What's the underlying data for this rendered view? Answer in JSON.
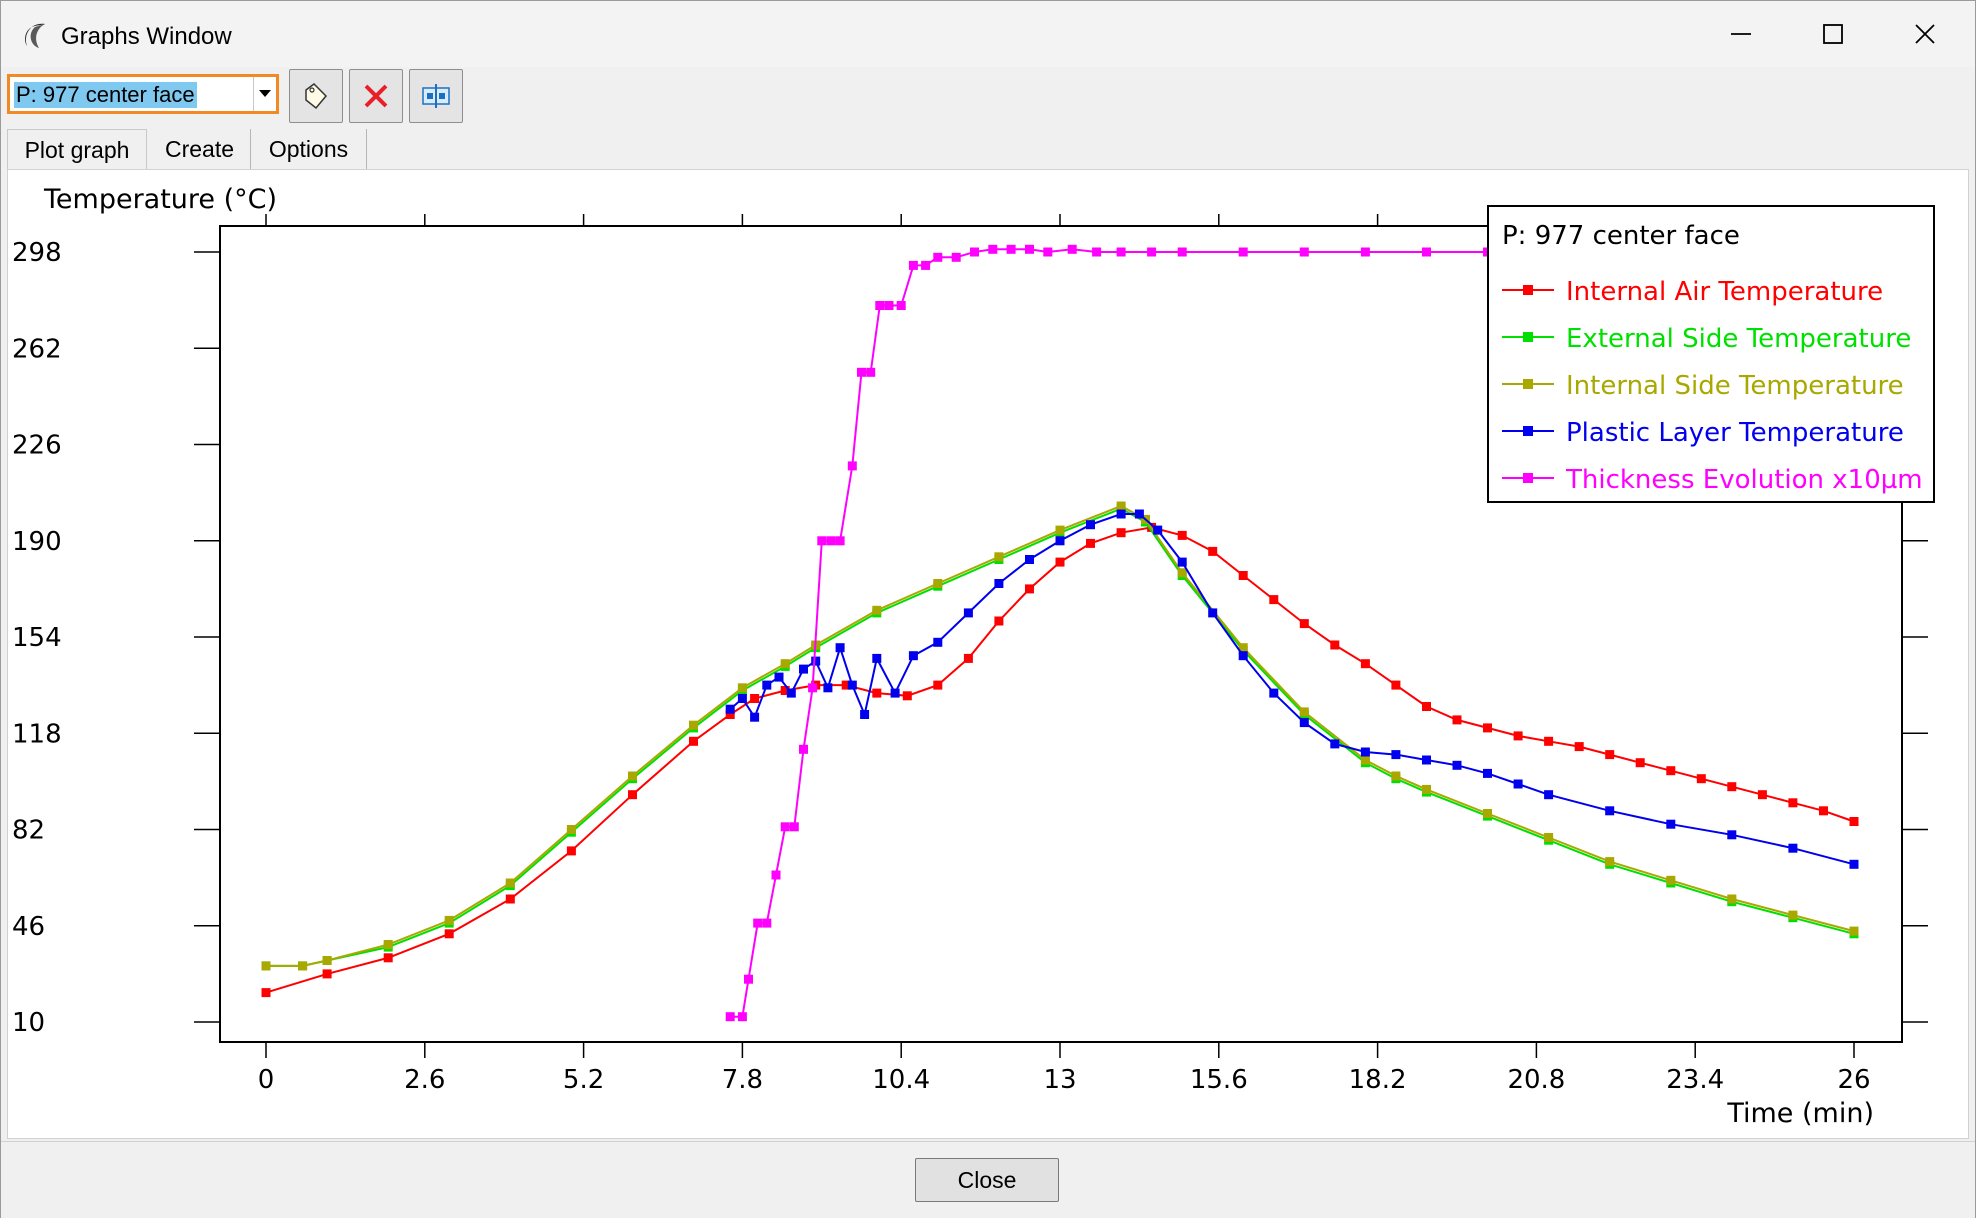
{
  "window": {
    "title": "Graphs Window",
    "icons": {
      "app": "moon-logo-icon",
      "minimize": "minimize-icon",
      "maximize": "maximize-icon",
      "close": "close-icon"
    }
  },
  "toolbar": {
    "selector_value": "P: 977 center face",
    "icons": [
      "tag-icon",
      "delete-x-icon",
      "export-dialog-icon"
    ],
    "colors": {
      "selector_border": "#f08a24",
      "selection_highlight": "#7fc8f0",
      "delete": "#e8202a"
    }
  },
  "tabs": [
    {
      "label": "Plot graph",
      "active": true
    },
    {
      "label": "Create",
      "active": false
    },
    {
      "label": "Options",
      "active": false
    }
  ],
  "chart_data": {
    "type": "line",
    "title": "",
    "ylabel": "Temperature (°C)",
    "xlabel": "Time (min)",
    "xlim": [
      0,
      26
    ],
    "ylim": [
      10,
      298
    ],
    "x_ticks": [
      "0",
      "2.6",
      "5.2",
      "7.8",
      "10.4",
      "13",
      "15.6",
      "18.2",
      "20.8",
      "23.4",
      "26"
    ],
    "y_ticks": [
      "298",
      "262",
      "226",
      "190",
      "154",
      "118",
      "82",
      "46",
      "10"
    ],
    "grid": false,
    "legend": {
      "title": "P: 977 center face",
      "placement": "top-right"
    },
    "series": [
      {
        "name": "Internal Air Temperature",
        "color": "#ff0000",
        "x": [
          0,
          1,
          2,
          3,
          4,
          5,
          6,
          7,
          7.6,
          8,
          8.5,
          9,
          9.5,
          10,
          10.5,
          11,
          11.5,
          12,
          12.5,
          13,
          13.5,
          14,
          14.5,
          15,
          15.5,
          16,
          16.5,
          17,
          17.5,
          18,
          18.5,
          19,
          19.5,
          20,
          20.5,
          21,
          21.5,
          22,
          22.5,
          23,
          23.5,
          24,
          24.5,
          25,
          25.5,
          26
        ],
        "y": [
          21,
          28,
          34,
          43,
          56,
          74,
          95,
          115,
          125,
          131,
          134,
          136,
          136,
          133,
          132,
          136,
          146,
          160,
          172,
          182,
          189,
          193,
          195,
          192,
          186,
          177,
          168,
          159,
          151,
          144,
          136,
          128,
          123,
          120,
          117,
          115,
          113,
          110,
          107,
          104,
          101,
          98,
          95,
          92,
          89,
          85
        ]
      },
      {
        "name": "External Side Temperature",
        "color": "#00e000",
        "x": [
          0,
          0.6,
          1,
          2,
          3,
          4,
          5,
          6,
          7,
          7.8,
          8.5,
          9,
          10,
          11,
          12,
          13,
          14,
          14.4,
          15,
          16,
          17,
          18,
          18.5,
          19,
          20,
          21,
          22,
          23,
          24,
          25,
          26
        ],
        "y": [
          31,
          31,
          33,
          38,
          47,
          61,
          81,
          101,
          120,
          134,
          143,
          150,
          163,
          173,
          183,
          193,
          202,
          197,
          177,
          149,
          125,
          107,
          101,
          96,
          87,
          78,
          69,
          62,
          55,
          49,
          43
        ]
      },
      {
        "name": "Internal Side Temperature",
        "color": "#a8a800",
        "x": [
          0,
          0.6,
          1,
          2,
          3,
          4,
          5,
          6,
          7,
          7.8,
          8.5,
          9,
          10,
          11,
          12,
          13,
          14,
          14.4,
          15,
          16,
          17,
          18,
          18.5,
          19,
          20,
          21,
          22,
          23,
          24,
          25,
          26
        ],
        "y": [
          31,
          31,
          33,
          39,
          48,
          62,
          82,
          102,
          121,
          135,
          144,
          151,
          164,
          174,
          184,
          194,
          203,
          198,
          178,
          150,
          126,
          108,
          102,
          97,
          88,
          79,
          70,
          63,
          56,
          50,
          44
        ]
      },
      {
        "name": "Plastic Layer Temperature",
        "color": "#0000ee",
        "x": [
          7.6,
          7.8,
          8,
          8.2,
          8.4,
          8.6,
          8.8,
          9,
          9.2,
          9.4,
          9.6,
          9.8,
          10,
          10.3,
          10.6,
          11,
          11.5,
          12,
          12.5,
          13,
          13.5,
          14,
          14.3,
          14.6,
          15,
          15.5,
          16,
          16.5,
          17,
          17.5,
          18,
          18.5,
          19,
          19.5,
          20,
          20.5,
          21,
          22,
          23,
          24,
          25,
          26
        ],
        "y": [
          127,
          131,
          124,
          136,
          139,
          133,
          142,
          145,
          135,
          150,
          136,
          125,
          146,
          133,
          147,
          152,
          163,
          174,
          183,
          190,
          196,
          200,
          200,
          194,
          182,
          163,
          147,
          133,
          122,
          114,
          111,
          110,
          108,
          106,
          103,
          99,
          95,
          89,
          84,
          80,
          75,
          69
        ]
      },
      {
        "name": "Thickness Evolution x10µm",
        "color": "#ff00ff",
        "x": [
          7.6,
          7.8,
          7.9,
          8.05,
          8.2,
          8.35,
          8.5,
          8.65,
          8.8,
          8.95,
          9.1,
          9.25,
          9.4,
          9.6,
          9.75,
          9.9,
          10.05,
          10.2,
          10.4,
          10.6,
          10.8,
          11.0,
          11.3,
          11.6,
          11.9,
          12.2,
          12.5,
          12.8,
          13.2,
          13.6,
          14,
          14.5,
          15,
          16,
          17,
          18,
          19,
          20,
          21,
          22,
          23,
          24,
          25,
          26
        ],
        "y": [
          12,
          12,
          26,
          47,
          47,
          65,
          83,
          83,
          112,
          135,
          190,
          190,
          190,
          218,
          253,
          253,
          278,
          278,
          278,
          293,
          293,
          296,
          296,
          298,
          299,
          299,
          299,
          298,
          299,
          298,
          298,
          298,
          298,
          298,
          298,
          298,
          298,
          298,
          298,
          298,
          298,
          298,
          298,
          298
        ]
      }
    ]
  },
  "bottom": {
    "close_label": "Close"
  }
}
